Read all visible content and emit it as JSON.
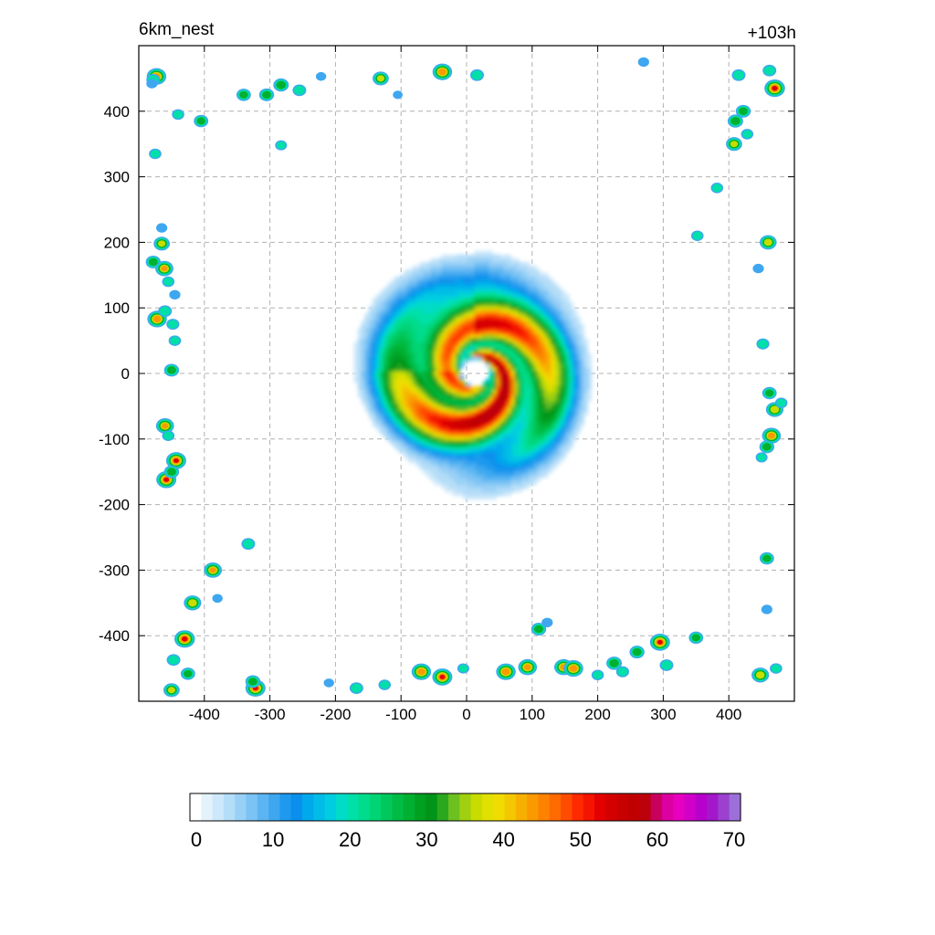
{
  "header": {
    "title": "6km_nest",
    "time_label": "+103h"
  },
  "chart_data": {
    "type": "heatmap",
    "title": "6km_nest",
    "annotation": "+103h",
    "xlim": [
      -500,
      500
    ],
    "ylim": [
      -500,
      500
    ],
    "x_ticks": [
      -400,
      -300,
      -200,
      -100,
      0,
      100,
      200,
      300,
      400
    ],
    "y_ticks": [
      400,
      300,
      200,
      100,
      0,
      -100,
      -200,
      -300,
      -400
    ],
    "grid": true,
    "colorbar": {
      "min": 0,
      "max": 70,
      "tick_values": [
        0,
        10,
        20,
        30,
        40,
        50,
        60,
        70
      ],
      "colors": [
        "#ffffff",
        "#e4f2fc",
        "#cde8fa",
        "#b4ddf8",
        "#98d0f6",
        "#7bc3f4",
        "#5cb5f2",
        "#3ea7f0",
        "#1f99ee",
        "#0a90ec",
        "#00a8ec",
        "#00bce6",
        "#00cde0",
        "#00dcc8",
        "#00e0a8",
        "#00dc8c",
        "#00d474",
        "#00c85c",
        "#00bc44",
        "#00b030",
        "#00a020",
        "#009418",
        "#2ca820",
        "#6cc020",
        "#a0d010",
        "#c8dc00",
        "#e2e000",
        "#f0dc00",
        "#f4c800",
        "#f8b000",
        "#fa9a00",
        "#fc8200",
        "#fe6a00",
        "#ff4c00",
        "#ff2a00",
        "#f41400",
        "#e40000",
        "#d40000",
        "#c80000",
        "#c00000",
        "#bc000c",
        "#c8005c",
        "#dc00a0",
        "#e800c0",
        "#d000c8",
        "#b800cc",
        "#a418cc",
        "#9c40d0",
        "#9c70d8"
      ]
    },
    "storm": {
      "center": [
        10,
        5
      ],
      "eye_radius": 20,
      "outer_radius": 200,
      "peak_value": 52
    },
    "scattered_cells": [
      {
        "x": -473,
        "y": 453,
        "v": 48
      },
      {
        "x": -478,
        "y": 448,
        "v": 25
      },
      {
        "x": -480,
        "y": 442,
        "v": 15
      },
      {
        "x": -440,
        "y": 395,
        "v": 20
      },
      {
        "x": -405,
        "y": 385,
        "v": 28
      },
      {
        "x": -475,
        "y": 335,
        "v": 20
      },
      {
        "x": -340,
        "y": 425,
        "v": 28
      },
      {
        "x": -305,
        "y": 425,
        "v": 30
      },
      {
        "x": -283,
        "y": 440,
        "v": 32
      },
      {
        "x": -255,
        "y": 432,
        "v": 25
      },
      {
        "x": -222,
        "y": 453,
        "v": 12
      },
      {
        "x": -283,
        "y": 348,
        "v": 18
      },
      {
        "x": -131,
        "y": 450,
        "v": 35
      },
      {
        "x": -105,
        "y": 425,
        "v": 10
      },
      {
        "x": -37,
        "y": 460,
        "v": 48
      },
      {
        "x": 16,
        "y": 455,
        "v": 25
      },
      {
        "x": 270,
        "y": 475,
        "v": 15
      },
      {
        "x": 415,
        "y": 455,
        "v": 25
      },
      {
        "x": 470,
        "y": 435,
        "v": 52
      },
      {
        "x": 462,
        "y": 462,
        "v": 25
      },
      {
        "x": 422,
        "y": 400,
        "v": 30
      },
      {
        "x": 410,
        "y": 385,
        "v": 32
      },
      {
        "x": 408,
        "y": 350,
        "v": 35
      },
      {
        "x": 428,
        "y": 365,
        "v": 20
      },
      {
        "x": 382,
        "y": 283,
        "v": 20
      },
      {
        "x": -465,
        "y": 222,
        "v": 15
      },
      {
        "x": -465,
        "y": 198,
        "v": 35
      },
      {
        "x": -478,
        "y": 170,
        "v": 30
      },
      {
        "x": -461,
        "y": 160,
        "v": 42
      },
      {
        "x": -455,
        "y": 140,
        "v": 20
      },
      {
        "x": -445,
        "y": 120,
        "v": 15
      },
      {
        "x": -472,
        "y": 83,
        "v": 48
      },
      {
        "x": -460,
        "y": 95,
        "v": 25
      },
      {
        "x": -448,
        "y": 75,
        "v": 22
      },
      {
        "x": -445,
        "y": 50,
        "v": 20
      },
      {
        "x": -450,
        "y": 5,
        "v": 30
      },
      {
        "x": -460,
        "y": -80,
        "v": 42
      },
      {
        "x": -455,
        "y": -95,
        "v": 20
      },
      {
        "x": -443,
        "y": -133,
        "v": 50
      },
      {
        "x": -458,
        "y": -162,
        "v": 50
      },
      {
        "x": -450,
        "y": -150,
        "v": 30
      },
      {
        "x": -333,
        "y": -260,
        "v": 25
      },
      {
        "x": -387,
        "y": -300,
        "v": 42
      },
      {
        "x": -418,
        "y": -350,
        "v": 40
      },
      {
        "x": -380,
        "y": -343,
        "v": 12
      },
      {
        "x": -430,
        "y": -405,
        "v": 52
      },
      {
        "x": -447,
        "y": -437,
        "v": 25
      },
      {
        "x": -425,
        "y": -458,
        "v": 28
      },
      {
        "x": -450,
        "y": -483,
        "v": 35
      },
      {
        "x": -322,
        "y": -480,
        "v": 50
      },
      {
        "x": -326,
        "y": -470,
        "v": 30
      },
      {
        "x": -210,
        "y": -472,
        "v": 12
      },
      {
        "x": -168,
        "y": -480,
        "v": 25
      },
      {
        "x": -125,
        "y": -475,
        "v": 20
      },
      {
        "x": -69,
        "y": -455,
        "v": 48
      },
      {
        "x": -37,
        "y": -463,
        "v": 50
      },
      {
        "x": -5,
        "y": -450,
        "v": 18
      },
      {
        "x": 60,
        "y": -455,
        "v": 48
      },
      {
        "x": 93,
        "y": -448,
        "v": 45
      },
      {
        "x": 110,
        "y": -390,
        "v": 30
      },
      {
        "x": 123,
        "y": -380,
        "v": 15
      },
      {
        "x": 148,
        "y": -448,
        "v": 45
      },
      {
        "x": 163,
        "y": -450,
        "v": 48
      },
      {
        "x": 200,
        "y": -460,
        "v": 20
      },
      {
        "x": 225,
        "y": -442,
        "v": 32
      },
      {
        "x": 238,
        "y": -455,
        "v": 22
      },
      {
        "x": 260,
        "y": -425,
        "v": 30
      },
      {
        "x": 295,
        "y": -410,
        "v": 50
      },
      {
        "x": 305,
        "y": -445,
        "v": 25
      },
      {
        "x": 350,
        "y": -403,
        "v": 28
      },
      {
        "x": 448,
        "y": -460,
        "v": 40
      },
      {
        "x": 472,
        "y": -450,
        "v": 20
      },
      {
        "x": 458,
        "y": -282,
        "v": 28
      },
      {
        "x": 458,
        "y": -360,
        "v": 15
      },
      {
        "x": 352,
        "y": 210,
        "v": 20
      },
      {
        "x": 460,
        "y": 200,
        "v": 38
      },
      {
        "x": 445,
        "y": 160,
        "v": 15
      },
      {
        "x": 452,
        "y": 45,
        "v": 22
      },
      {
        "x": 462,
        "y": -30,
        "v": 28
      },
      {
        "x": 470,
        "y": -55,
        "v": 40
      },
      {
        "x": 480,
        "y": -45,
        "v": 20
      },
      {
        "x": 465,
        "y": -95,
        "v": 45
      },
      {
        "x": 458,
        "y": -112,
        "v": 30
      },
      {
        "x": 450,
        "y": -128,
        "v": 18
      }
    ]
  }
}
